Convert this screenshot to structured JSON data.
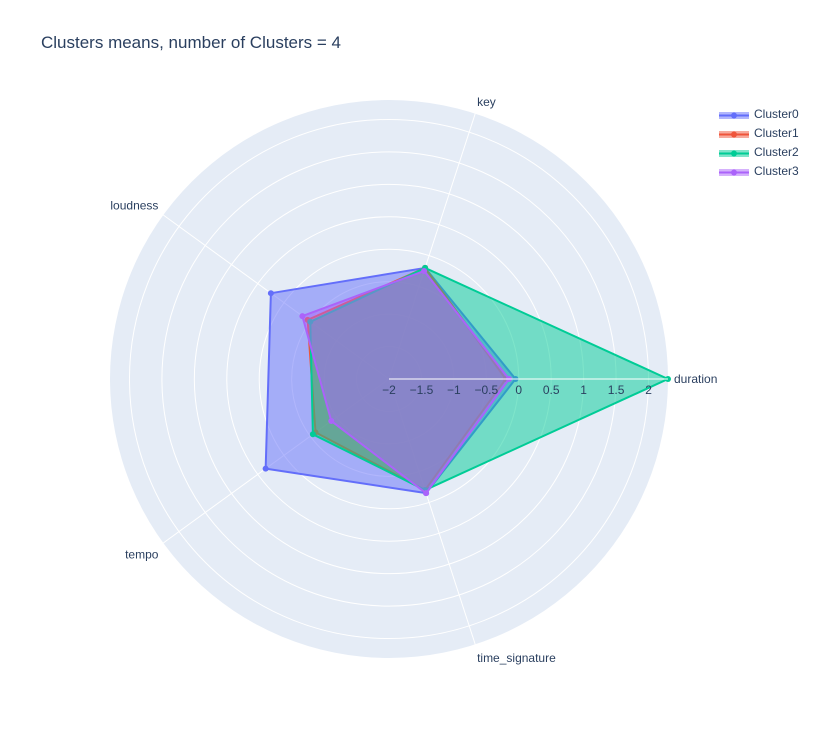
{
  "title": "Clusters means, number of Clusters = 4",
  "chart_data": {
    "type": "radar",
    "title": "Clusters means, number of Clusters = 4",
    "axes": [
      "duration",
      "key",
      "loudness",
      "tempo",
      "time_signature"
    ],
    "radial_range": [
      -2,
      2.3
    ],
    "radial_ticks": [
      "−2",
      "−1.5",
      "−1",
      "−0.5",
      "0",
      "0.5",
      "1",
      "1.5",
      "2"
    ],
    "grid": true,
    "legend_position": "top-right",
    "series": [
      {
        "name": "Cluster0",
        "color": "#636efa",
        "values": [
          -0.05,
          -0.2,
          0.25,
          0.35,
          -0.15
        ]
      },
      {
        "name": "Cluster1",
        "color": "#ef553b",
        "values": [
          -0.2,
          -0.2,
          -0.45,
          -0.6,
          -0.2
        ]
      },
      {
        "name": "Cluster2",
        "color": "#00cc96",
        "values": [
          2.3,
          -0.2,
          -0.5,
          -0.55,
          -0.2
        ]
      },
      {
        "name": "Cluster3",
        "color": "#ab63fa",
        "values": [
          -0.15,
          -0.25,
          -0.35,
          -0.9,
          -0.15
        ]
      }
    ]
  }
}
